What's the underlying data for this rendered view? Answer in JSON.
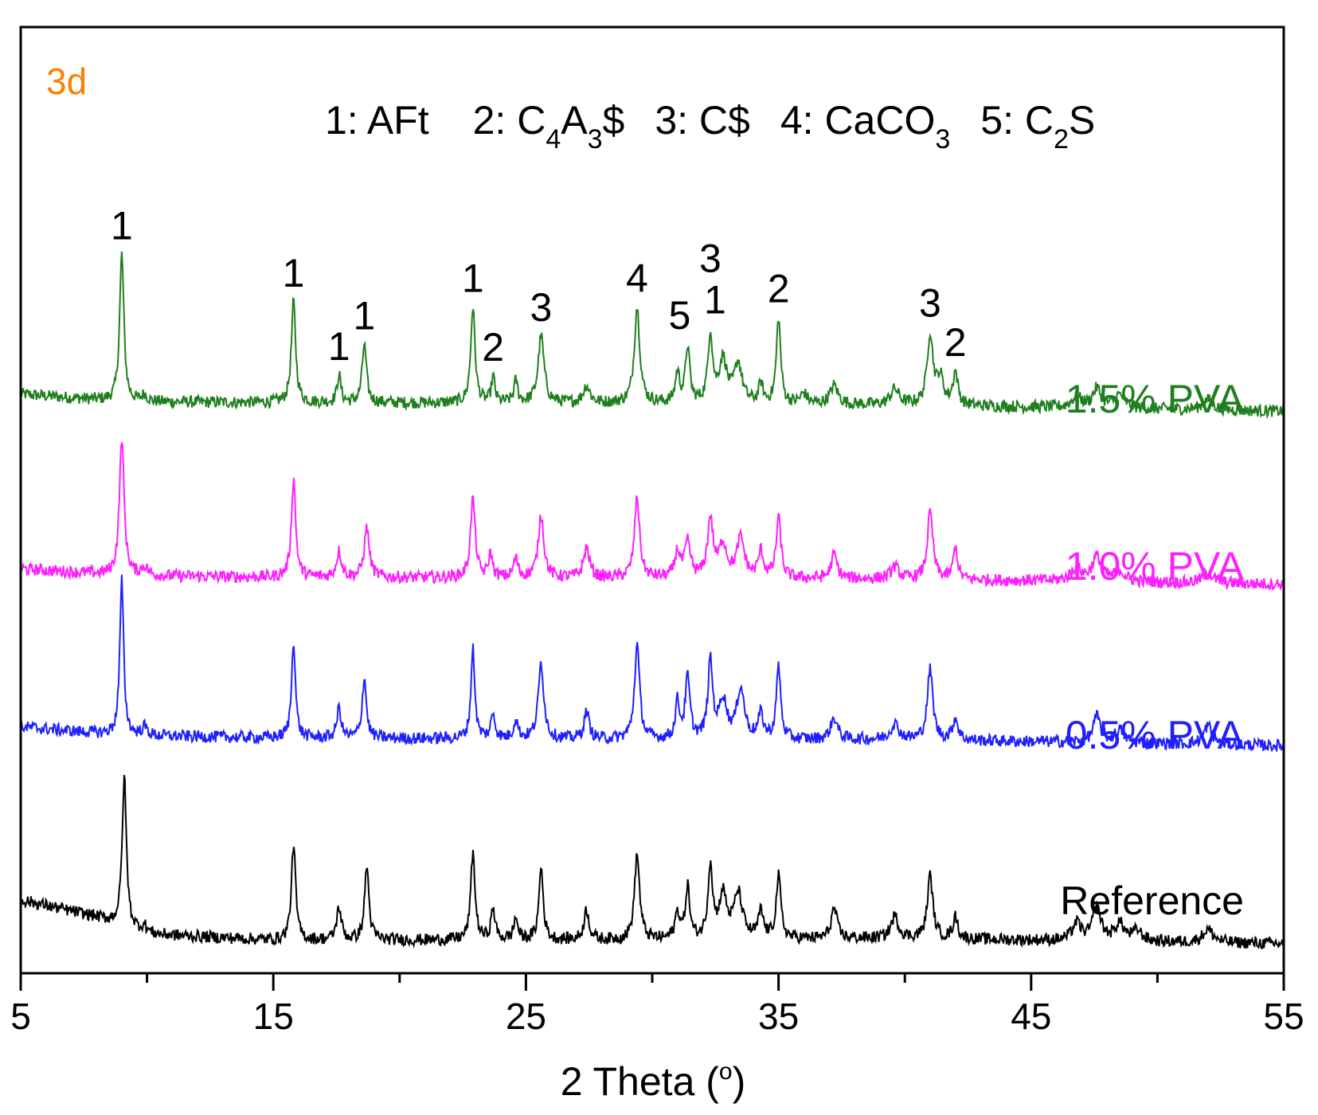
{
  "chart_data": {
    "type": "line",
    "panel_label": "3d",
    "xlabel": "2 Theta (",
    "xlabel_degree": "o",
    "xlabel_close": ")",
    "ylabel": "",
    "xlim": [
      5,
      55
    ],
    "x_ticks": [
      5,
      15,
      25,
      35,
      45,
      55
    ],
    "x_tick_labels": [
      "5",
      "15",
      "25",
      "35",
      "45",
      "55"
    ],
    "y_axis": "stacked offset intensity, no scale shown",
    "legend_parts": [
      {
        "t": "1: AFt",
        "s": "",
        "gap": 0
      },
      {
        "t": "2: C",
        "s": "",
        "gap": 55
      },
      {
        "t": "4",
        "s": "sub"
      },
      {
        "t": "A",
        "s": ""
      },
      {
        "t": "3",
        "s": "sub"
      },
      {
        "t": "$",
        "s": ""
      },
      {
        "t": "3: C$",
        "s": "",
        "gap": 38
      },
      {
        "t": "4: CaCO",
        "s": "",
        "gap": 38
      },
      {
        "t": "3",
        "s": "sub"
      },
      {
        "t": "5: C",
        "s": "",
        "gap": 38
      },
      {
        "t": "2",
        "s": "sub"
      },
      {
        "t": "S",
        "s": ""
      }
    ],
    "series": [
      {
        "name": "1.5% PVA",
        "color": "#1f7f1f",
        "baseline": [
          [
            5,
            53
          ],
          [
            9,
            44
          ],
          [
            15,
            43
          ],
          [
            30,
            42
          ],
          [
            40,
            40
          ],
          [
            55,
            33
          ]
        ],
        "peaks": [
          [
            9.0,
            172,
            0.1
          ],
          [
            9.9,
            8,
            0.12
          ],
          [
            15.8,
            118,
            0.1
          ],
          [
            17.6,
            32,
            0.09
          ],
          [
            18.6,
            68,
            0.1
          ],
          [
            22.9,
            112,
            0.1
          ],
          [
            23.7,
            30,
            0.08
          ],
          [
            24.6,
            25,
            0.09
          ],
          [
            25.6,
            78,
            0.14
          ],
          [
            27.4,
            20,
            0.16
          ],
          [
            29.4,
            112,
            0.13
          ],
          [
            31.0,
            35,
            0.1
          ],
          [
            31.4,
            65,
            0.1
          ],
          [
            32.3,
            80,
            0.11
          ],
          [
            32.8,
            50,
            0.18
          ],
          [
            33.4,
            46,
            0.18
          ],
          [
            34.3,
            22,
            0.1
          ],
          [
            35.0,
            100,
            0.1
          ],
          [
            36.0,
            12,
            0.15
          ],
          [
            37.2,
            22,
            0.18
          ],
          [
            39.6,
            18,
            0.2
          ],
          [
            41.0,
            82,
            0.14
          ],
          [
            41.4,
            30,
            0.15
          ],
          [
            42.0,
            38,
            0.12
          ],
          [
            46.8,
            12,
            0.25
          ],
          [
            47.6,
            22,
            0.2
          ],
          [
            48.5,
            15,
            0.25
          ],
          [
            52.0,
            12,
            0.25
          ]
        ],
        "label": "1.5% PVA"
      },
      {
        "name": "1.0% PVA",
        "color": "#ff1fff",
        "baseline": [
          [
            5,
            48
          ],
          [
            9,
            40
          ],
          [
            15,
            38
          ],
          [
            30,
            37
          ],
          [
            40,
            36
          ],
          [
            55,
            30
          ]
        ],
        "peaks": [
          [
            9.0,
            160,
            0.11
          ],
          [
            9.9,
            10,
            0.15
          ],
          [
            15.8,
            115,
            0.1
          ],
          [
            17.6,
            30,
            0.12
          ],
          [
            18.7,
            58,
            0.12
          ],
          [
            22.9,
            92,
            0.11
          ],
          [
            23.6,
            28,
            0.09
          ],
          [
            24.6,
            22,
            0.1
          ],
          [
            25.6,
            74,
            0.13
          ],
          [
            27.4,
            35,
            0.14
          ],
          [
            29.4,
            94,
            0.12
          ],
          [
            31.0,
            30,
            0.12
          ],
          [
            31.4,
            40,
            0.13
          ],
          [
            32.3,
            68,
            0.13
          ],
          [
            32.8,
            38,
            0.18
          ],
          [
            33.5,
            45,
            0.18
          ],
          [
            34.3,
            30,
            0.12
          ],
          [
            35.0,
            70,
            0.11
          ],
          [
            37.2,
            28,
            0.14
          ],
          [
            39.6,
            14,
            0.18
          ],
          [
            41.0,
            78,
            0.13
          ],
          [
            42.0,
            38,
            0.1
          ],
          [
            46.8,
            15,
            0.25
          ],
          [
            47.6,
            28,
            0.22
          ],
          [
            48.5,
            12,
            0.25
          ],
          [
            52.0,
            12,
            0.25
          ]
        ],
        "label": "1.0% PVA"
      },
      {
        "name": "0.5% PVA",
        "color": "#1f1fff",
        "baseline": [
          [
            5,
            55
          ],
          [
            9,
            45
          ],
          [
            15,
            42
          ],
          [
            30,
            40
          ],
          [
            40,
            40
          ],
          [
            55,
            33
          ]
        ],
        "peaks": [
          [
            9.0,
            180,
            0.09
          ],
          [
            9.9,
            10,
            0.13
          ],
          [
            15.8,
            115,
            0.09
          ],
          [
            17.6,
            35,
            0.1
          ],
          [
            18.6,
            70,
            0.1
          ],
          [
            22.9,
            105,
            0.09
          ],
          [
            23.7,
            28,
            0.1
          ],
          [
            24.6,
            22,
            0.1
          ],
          [
            25.6,
            88,
            0.13
          ],
          [
            27.4,
            32,
            0.12
          ],
          [
            29.4,
            110,
            0.12
          ],
          [
            31.0,
            42,
            0.1
          ],
          [
            31.4,
            70,
            0.11
          ],
          [
            32.3,
            90,
            0.11
          ],
          [
            32.8,
            45,
            0.18
          ],
          [
            33.5,
            58,
            0.18
          ],
          [
            34.3,
            28,
            0.12
          ],
          [
            35.0,
            85,
            0.1
          ],
          [
            37.2,
            25,
            0.16
          ],
          [
            39.6,
            18,
            0.2
          ],
          [
            41.0,
            82,
            0.13
          ],
          [
            42.0,
            25,
            0.13
          ],
          [
            47.6,
            30,
            0.18
          ],
          [
            48.5,
            15,
            0.22
          ],
          [
            52.0,
            22,
            0.2
          ]
        ],
        "label": "0.5% PVA"
      },
      {
        "name": "Reference",
        "color": "#000000",
        "baseline": [
          [
            5,
            65
          ],
          [
            8,
            45
          ],
          [
            10,
            25
          ],
          [
            15,
            18
          ],
          [
            30,
            18
          ],
          [
            40,
            20
          ],
          [
            55,
            14
          ]
        ],
        "peaks": [
          [
            9.1,
            175,
            0.1
          ],
          [
            9.9,
            8,
            0.15
          ],
          [
            15.8,
            112,
            0.1
          ],
          [
            17.6,
            38,
            0.11
          ],
          [
            18.7,
            87,
            0.1
          ],
          [
            22.9,
            102,
            0.1
          ],
          [
            23.7,
            35,
            0.1
          ],
          [
            24.6,
            25,
            0.1
          ],
          [
            25.6,
            85,
            0.1
          ],
          [
            27.4,
            35,
            0.12
          ],
          [
            29.4,
            100,
            0.12
          ],
          [
            31.0,
            30,
            0.12
          ],
          [
            31.4,
            60,
            0.1
          ],
          [
            32.3,
            85,
            0.11
          ],
          [
            32.8,
            50,
            0.18
          ],
          [
            33.4,
            52,
            0.2
          ],
          [
            34.3,
            30,
            0.12
          ],
          [
            35.0,
            72,
            0.11
          ],
          [
            37.2,
            35,
            0.14
          ],
          [
            39.6,
            25,
            0.18
          ],
          [
            41.0,
            73,
            0.13
          ],
          [
            42.0,
            25,
            0.12
          ],
          [
            46.8,
            20,
            0.2
          ],
          [
            47.6,
            38,
            0.2
          ],
          [
            48.5,
            20,
            0.22
          ],
          [
            49.2,
            12,
            0.22
          ],
          [
            52.0,
            15,
            0.25
          ]
        ],
        "label": "Reference"
      }
    ],
    "peak_annotations": [
      {
        "text": "1",
        "x": 9.0
      },
      {
        "text": "1",
        "x": 15.8
      },
      {
        "text": "1",
        "x": 17.6
      },
      {
        "text": "1",
        "x": 18.6
      },
      {
        "text": "1",
        "x": 22.9
      },
      {
        "text": "2",
        "x": 23.7
      },
      {
        "text": "3",
        "x": 25.6
      },
      {
        "text": "4",
        "x": 29.4
      },
      {
        "text": "5",
        "x": 31.4
      },
      {
        "text": "1",
        "x": 32.3
      },
      {
        "text": "3",
        "x": 32.3
      },
      {
        "text": "2",
        "x": 35.0
      },
      {
        "text": "3",
        "x": 41.0
      },
      {
        "text": "2",
        "x": 42.0
      }
    ],
    "colors": {
      "panel_label": "#ff7f00",
      "axis": "#000000"
    }
  }
}
